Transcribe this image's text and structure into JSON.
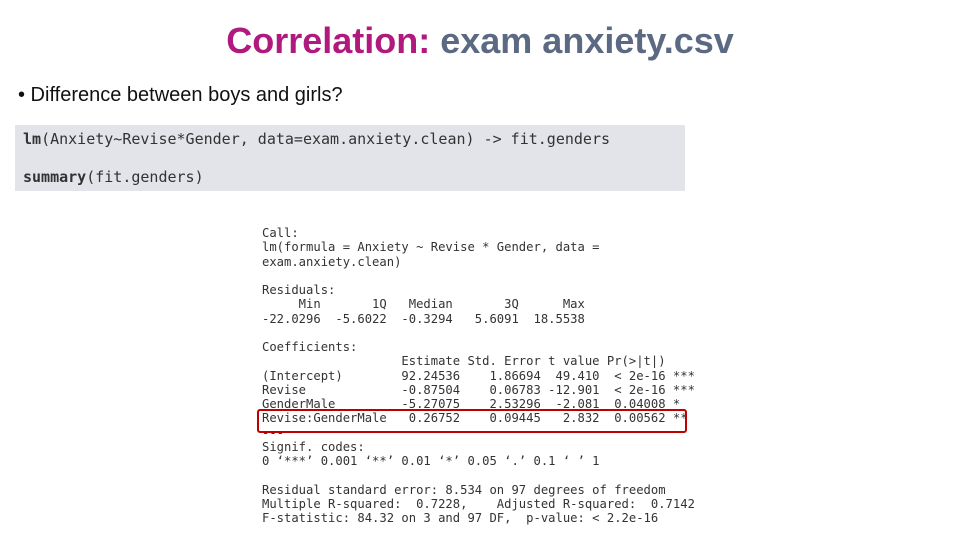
{
  "slide": {
    "title": {
      "keyword": "Correlation:",
      "subject": "exam anxiety.csv"
    },
    "bullet": "• Difference between boys and girls?",
    "code": [
      {
        "function": "lm",
        "rest": "(Anxiety~Revise*Gender, data=exam.anxiety.clean) -> fit.genders"
      },
      {
        "function": "summary",
        "rest": "(fit.genders)"
      }
    ],
    "output": {
      "call": [
        "Call:",
        "lm(formula = Anxiety ~ Revise * Gender, data =",
        "exam.anxiety.clean)"
      ],
      "residuals": [
        "Residuals:",
        "     Min       1Q   Median       3Q      Max",
        "-22.0296  -5.6022  -0.3294   5.6091  18.5538"
      ],
      "coefficients": [
        "Coefficients:",
        "                   Estimate Std. Error t value Pr(>|t|)",
        "(Intercept)        92.24536    1.86694  49.410  < 2e-16 ***",
        "Revise             -0.87504    0.06783 -12.901  < 2e-16 ***",
        "GenderMale         -5.27075    2.53296  -2.081  0.04008 *",
        "Revise:GenderMale   0.26752    0.09445   2.832  0.00562 **",
        "---",
        "Signif. codes:",
        "0 ‘***’ 0.001 ‘**’ 0.01 ‘*’ 0.05 ‘.’ 0.1 ‘ ’ 1"
      ],
      "fit": [
        "Residual standard error: 8.534 on 97 degrees of freedom",
        "Multiple R-squared:  0.7228,    Adjusted R-squared:  0.7142",
        "F-statistic: 84.32 on 3 and 97 DF,  p-value: < 2.2e-16"
      ]
    }
  }
}
